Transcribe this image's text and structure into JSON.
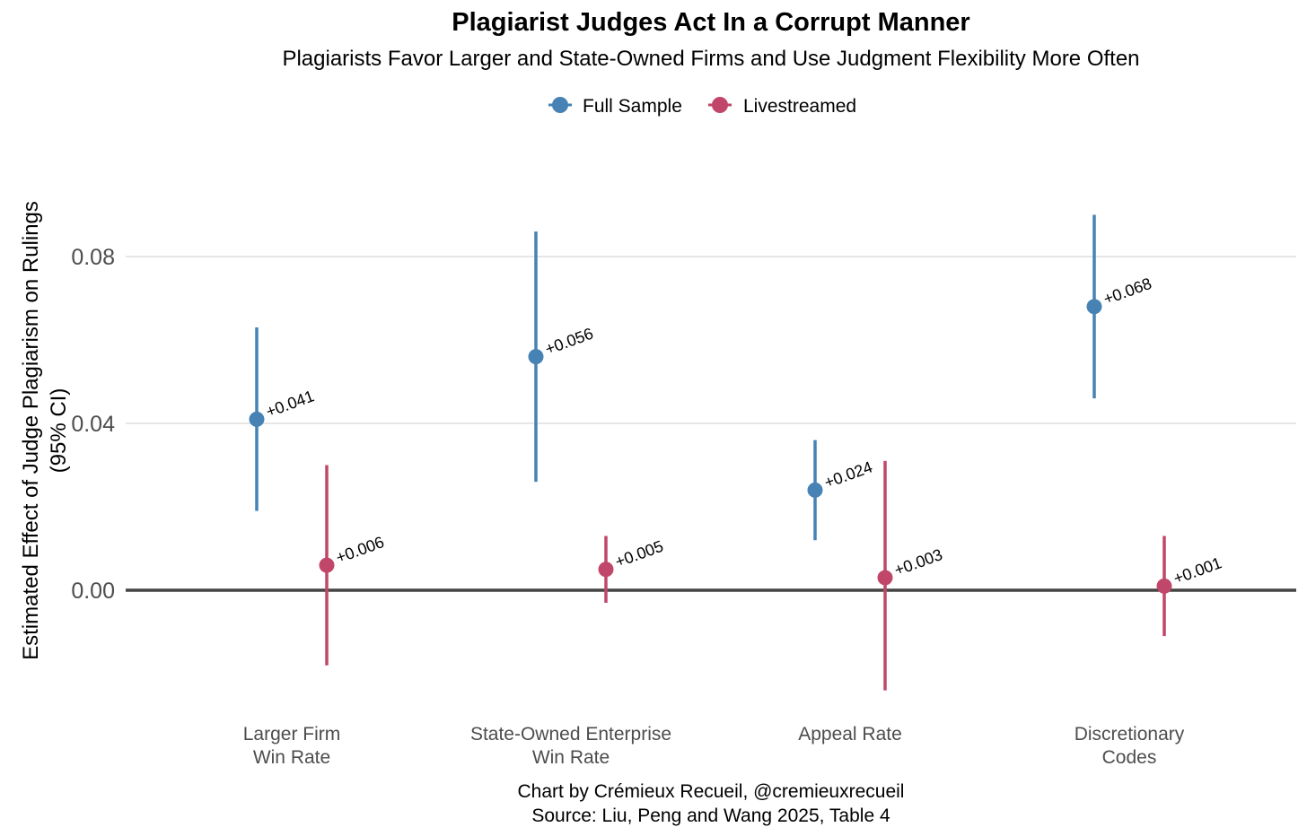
{
  "chart_data": {
    "type": "scatter",
    "subtype": "pointrange",
    "title": "Plagiarist Judges Act In a Corrupt Manner",
    "subtitle": "Plagiarists Favor Larger and State-Owned Firms and Use Judgment Flexibility More Often",
    "ylabel_line1": "Estimated Effect of Judge Plagiarism on Rulings",
    "ylabel_line2": "(95% CI)",
    "xlabel": "",
    "ylim": [
      -0.026,
      0.1
    ],
    "yticks": [
      0.0,
      0.04,
      0.08
    ],
    "ytick_labels": [
      "0.00",
      "0.04",
      "0.08"
    ],
    "grid": true,
    "legend_position": "top",
    "categories": [
      [
        "Larger Firm",
        "Win Rate"
      ],
      [
        "State-Owned Enterprise",
        "Win Rate"
      ],
      [
        "Appeal Rate"
      ],
      [
        "Discretionary",
        "Codes"
      ]
    ],
    "series": [
      {
        "name": "Full Sample",
        "color": "#4682b4",
        "values": [
          0.041,
          0.056,
          0.024,
          0.068
        ],
        "ci_low": [
          0.019,
          0.026,
          0.012,
          0.046
        ],
        "ci_high": [
          0.063,
          0.086,
          0.036,
          0.09
        ],
        "labels": [
          "+0.041",
          "+0.056",
          "+0.024",
          "+0.068"
        ]
      },
      {
        "name": "Livestreamed",
        "color": "#c0476a",
        "values": [
          0.006,
          0.005,
          0.003,
          0.001
        ],
        "ci_low": [
          -0.018,
          -0.003,
          -0.024,
          -0.011
        ],
        "ci_high": [
          0.03,
          0.013,
          0.031,
          0.013
        ],
        "labels": [
          "+0.006",
          "+0.005",
          "+0.003",
          "+0.001"
        ]
      }
    ],
    "caption_line1": "Chart by Crémieux Recueil, @cremieuxrecueil",
    "caption_line2": "Source: Liu, Peng and Wang 2025, Table 4"
  }
}
